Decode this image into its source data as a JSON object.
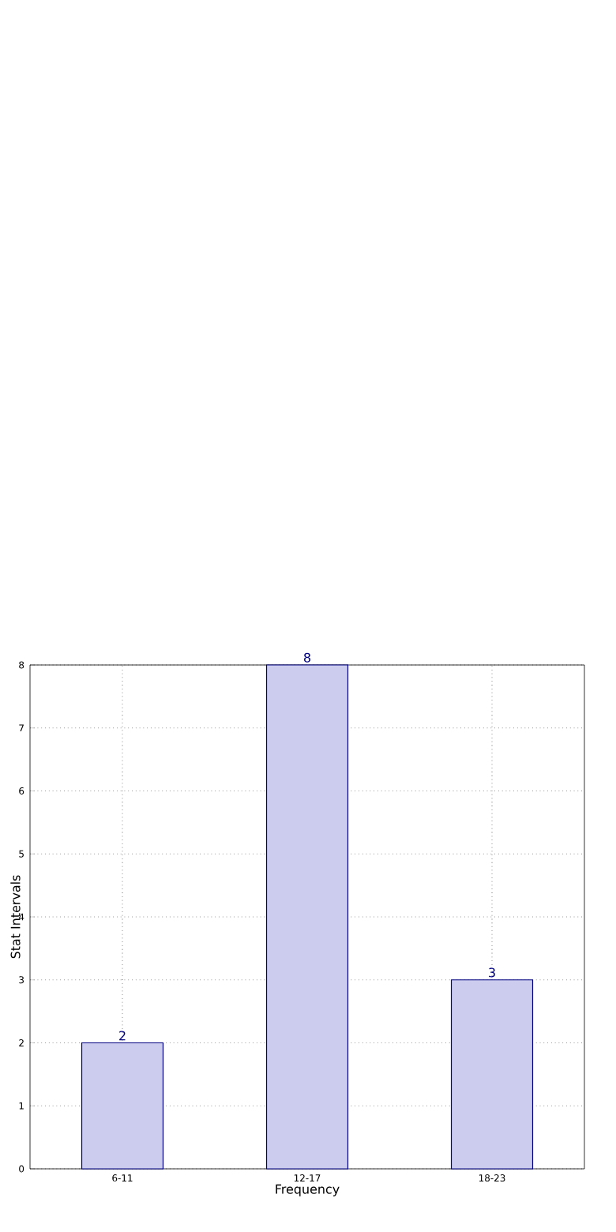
{
  "chart_data": {
    "type": "bar",
    "xlabel": "Frequency",
    "ylabel": "Stat Intervals",
    "categories": [
      "6-11",
      "12-17",
      "18-23"
    ],
    "values": [
      2,
      8,
      3
    ],
    "color": "#ccccee",
    "ylim": [
      0,
      8
    ],
    "yticks": [
      0,
      1,
      2,
      3,
      4,
      5,
      6,
      7,
      8
    ],
    "grid": true,
    "data_labels": true
  }
}
